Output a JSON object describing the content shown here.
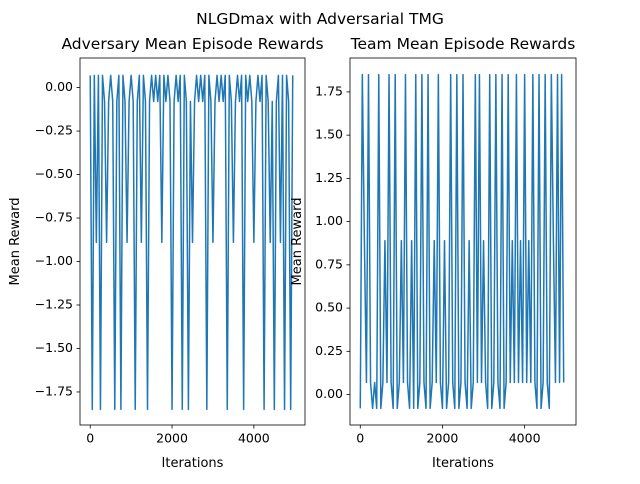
{
  "figure_title": "NLGDmax with Adversarial TMG",
  "chart_data": [
    {
      "type": "line",
      "title": "Adversary Mean Episode Rewards",
      "x_label": "Iterations",
      "y_label": "Mean Reward",
      "xlim": [
        -250,
        5250
      ],
      "xticks": [
        0,
        2000,
        4000
      ],
      "ylim": [
        -1.94,
        0.17
      ],
      "yticks": [
        {
          "value": 0,
          "label": "0.00"
        },
        {
          "value": -0.25,
          "label": "−0.25"
        },
        {
          "value": -0.5,
          "label": "−0.50"
        },
        {
          "value": -0.75,
          "label": "−0.75"
        },
        {
          "value": -1,
          "label": "−1.00"
        },
        {
          "value": -1.25,
          "label": "−1.25"
        },
        {
          "value": -1.5,
          "label": "−1.50"
        },
        {
          "value": -1.75,
          "label": "−1.75"
        }
      ],
      "x": [
        0,
        50,
        100,
        150,
        200,
        250,
        300,
        350,
        400,
        450,
        500,
        550,
        600,
        650,
        700,
        750,
        800,
        850,
        900,
        950,
        1000,
        1050,
        1100,
        1150,
        1200,
        1250,
        1300,
        1350,
        1400,
        1450,
        1500,
        1550,
        1600,
        1650,
        1700,
        1750,
        1800,
        1850,
        1900,
        1950,
        2000,
        2050,
        2100,
        2150,
        2200,
        2250,
        2300,
        2350,
        2400,
        2450,
        2500,
        2550,
        2600,
        2650,
        2700,
        2750,
        2800,
        2850,
        2900,
        2950,
        3000,
        3050,
        3100,
        3150,
        3200,
        3250,
        3300,
        3350,
        3400,
        3450,
        3500,
        3550,
        3600,
        3650,
        3700,
        3750,
        3800,
        3850,
        3900,
        3950,
        4000,
        4050,
        4100,
        4150,
        4200,
        4250,
        4300,
        4350,
        4400,
        4450,
        4500,
        4550,
        4600,
        4650,
        4700,
        4750,
        4800,
        4850,
        4900,
        4950
      ],
      "series": [
        {
          "color": "#1f77b4",
          "values": [
            0.07,
            -1.85,
            0.07,
            -0.89,
            0.07,
            -1.85,
            0.07,
            -0.08,
            -0.89,
            -0.08,
            0.07,
            -0.08,
            -1.85,
            -0.08,
            0.07,
            -1.85,
            0.07,
            -0.08,
            -0.89,
            -0.08,
            0.07,
            -0.08,
            -1.85,
            -0.08,
            0.07,
            -0.89,
            0.07,
            -0.08,
            -1.85,
            -0.08,
            0.07,
            -0.08,
            0.07,
            -0.08,
            0.07,
            -0.89,
            0.07,
            -0.08,
            0.07,
            -0.08,
            -1.85,
            -0.08,
            0.07,
            -0.08,
            0.07,
            -1.85,
            0.07,
            -0.08,
            -1.85,
            -0.08,
            -0.89,
            -0.08,
            0.07,
            -0.08,
            0.07,
            -0.08,
            0.07,
            -1.85,
            0.07,
            -0.08,
            -0.89,
            -0.08,
            0.07,
            -0.08,
            0.07,
            -0.08,
            0.07,
            -1.85,
            0.07,
            -0.08,
            -0.89,
            -0.08,
            0.07,
            -0.08,
            0.07,
            -1.85,
            0.07,
            -0.08,
            0.07,
            -0.08,
            -0.89,
            -0.08,
            0.07,
            -0.08,
            0.07,
            -1.85,
            0.07,
            -0.08,
            -0.89,
            -0.08,
            -1.85,
            -0.08,
            0.07,
            -0.89,
            0.07,
            -1.85,
            0.07,
            -0.08,
            -1.85,
            0.07
          ]
        }
      ]
    },
    {
      "type": "line",
      "title": "Team Mean Episode Rewards",
      "x_label": "Iterations",
      "y_label": "Mean Reward",
      "xlim": [
        -250,
        5250
      ],
      "xticks": [
        0,
        2000,
        4000
      ],
      "ylim": [
        -0.176,
        1.946
      ],
      "yticks": [
        {
          "value": 0,
          "label": "0.00"
        },
        {
          "value": 0.25,
          "label": "0.25"
        },
        {
          "value": 0.5,
          "label": "0.50"
        },
        {
          "value": 0.75,
          "label": "0.75"
        },
        {
          "value": 1,
          "label": "1.00"
        },
        {
          "value": 1.25,
          "label": "1.25"
        },
        {
          "value": 1.5,
          "label": "1.50"
        },
        {
          "value": 1.75,
          "label": "1.75"
        }
      ],
      "x": [
        0,
        50,
        100,
        150,
        200,
        250,
        300,
        350,
        400,
        450,
        500,
        550,
        600,
        650,
        700,
        750,
        800,
        850,
        900,
        950,
        1000,
        1050,
        1100,
        1150,
        1200,
        1250,
        1300,
        1350,
        1400,
        1450,
        1500,
        1550,
        1600,
        1650,
        1700,
        1750,
        1800,
        1850,
        1900,
        1950,
        2000,
        2050,
        2100,
        2150,
        2200,
        2250,
        2300,
        2350,
        2400,
        2450,
        2500,
        2550,
        2600,
        2650,
        2700,
        2750,
        2800,
        2850,
        2900,
        2950,
        3000,
        3050,
        3100,
        3150,
        3200,
        3250,
        3300,
        3350,
        3400,
        3450,
        3500,
        3550,
        3600,
        3650,
        3700,
        3750,
        3800,
        3850,
        3900,
        3950,
        4000,
        4050,
        4100,
        4150,
        4200,
        4250,
        4300,
        4350,
        4400,
        4450,
        4500,
        4550,
        4600,
        4650,
        4700,
        4750,
        4800,
        4850,
        4900,
        4950
      ],
      "series": [
        {
          "color": "#1f77b4",
          "values": [
            -0.08,
            1.85,
            0.89,
            0.07,
            1.85,
            0.07,
            -0.08,
            0.07,
            -0.08,
            1.85,
            -0.08,
            0.07,
            0.89,
            0.07,
            1.85,
            0.07,
            -0.08,
            1.85,
            -0.08,
            0.07,
            0.89,
            0.07,
            1.85,
            0.07,
            -0.08,
            0.89,
            -0.08,
            1.85,
            -0.08,
            0.07,
            1.85,
            0.07,
            -0.08,
            1.85,
            -0.08,
            0.07,
            0.89,
            0.07,
            1.85,
            0.07,
            -0.08,
            0.89,
            -0.08,
            0.07,
            1.85,
            0.07,
            -0.08,
            1.85,
            -0.08,
            0.07,
            1.85,
            0.07,
            -0.08,
            0.89,
            -0.08,
            0.07,
            1.85,
            0.07,
            1.85,
            0.07,
            0.89,
            0.07,
            -0.08,
            1.85,
            -0.08,
            0.07,
            1.85,
            0.07,
            -0.08,
            1.85,
            -0.08,
            0.07,
            1.85,
            0.07,
            0.89,
            0.07,
            1.85,
            0.07,
            0.89,
            0.07,
            1.85,
            0.07,
            0.89,
            0.07,
            1.85,
            0.07,
            -0.08,
            1.85,
            -0.08,
            0.07,
            1.85,
            0.07,
            -0.08,
            1.85,
            0.89,
            0.07,
            1.85,
            0.07,
            1.85,
            0.07
          ]
        }
      ]
    }
  ]
}
